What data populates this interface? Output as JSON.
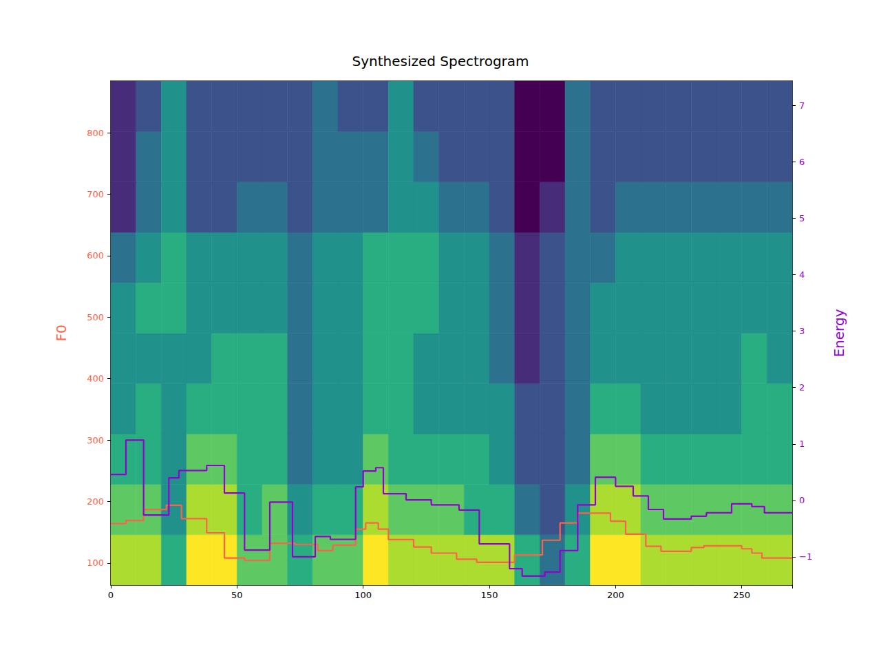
{
  "chart_data": {
    "type": "line",
    "title": "Synthesized Spectrogram",
    "xlim": [
      0,
      270
    ],
    "xticks": [
      0,
      50,
      100,
      150,
      200,
      250
    ],
    "ylabel": "F0",
    "ylim": [
      64,
      884
    ],
    "yticks": [
      100,
      200,
      300,
      400,
      500,
      600,
      700,
      800
    ],
    "y2label": "Energy",
    "y2lim": [
      -1.5,
      7.43
    ],
    "y2ticks": [
      {
        "value": -1,
        "label": "−1"
      },
      0,
      1,
      2,
      3,
      4,
      5,
      6,
      7
    ],
    "series": [
      {
        "name": "F0",
        "color": "#ff6347",
        "x": [
          0,
          6,
          13,
          22,
          28,
          38,
          45,
          53,
          63,
          73,
          82,
          88,
          97,
          101,
          106,
          110,
          120,
          127,
          137,
          145,
          160,
          171,
          178,
          185,
          198,
          204,
          212,
          218,
          230,
          235,
          250,
          254,
          258,
          270
        ],
        "values": [
          164,
          169,
          187,
          194,
          172,
          149,
          108,
          104,
          132,
          130,
          120,
          129,
          155,
          165,
          155,
          138,
          126,
          116,
          106,
          101,
          113,
          137,
          165,
          181,
          168,
          147,
          127,
          119,
          125,
          128,
          123,
          116,
          108,
          108
        ]
      },
      {
        "name": "Energy",
        "color": "#9400d3",
        "axis": "y2",
        "x": [
          0,
          6,
          13,
          23,
          27,
          38,
          45,
          53,
          63,
          72,
          81,
          87,
          97,
          100,
          105,
          108,
          117,
          127,
          138,
          146,
          158,
          163,
          172,
          178,
          185,
          192,
          200,
          207,
          213,
          219,
          230,
          236,
          246,
          254,
          259,
          270
        ],
        "values": [
          0.46,
          1.07,
          -0.26,
          0.4,
          0.53,
          0.62,
          0.13,
          -0.88,
          -0.03,
          -1.0,
          -0.64,
          -0.69,
          0.24,
          0.52,
          0.58,
          0.12,
          0.01,
          -0.08,
          -0.17,
          -0.77,
          -1.21,
          -1.34,
          -1.27,
          -0.89,
          -0.08,
          0.41,
          0.25,
          0.08,
          -0.16,
          -0.33,
          -0.28,
          -0.22,
          -0.06,
          -0.11,
          -0.22,
          -0.22
        ]
      }
    ],
    "spectrogram": {
      "x_edges": [
        0,
        10,
        20,
        30,
        40,
        50,
        60,
        70,
        80,
        90,
        100,
        110,
        120,
        130,
        140,
        150,
        160,
        170,
        180,
        190,
        200,
        210,
        220,
        230,
        240,
        250,
        260,
        270
      ],
      "y_edges": [
        64,
        146,
        228,
        310,
        392,
        474,
        556,
        638,
        720,
        802,
        884
      ],
      "values": [
        [
          8,
          8,
          6,
          9,
          9,
          7,
          7,
          6,
          7,
          7,
          9,
          8,
          8,
          8,
          8,
          8,
          6,
          4,
          6,
          9,
          9,
          8,
          8,
          8,
          8,
          8,
          8
        ],
        [
          7,
          7,
          5,
          8,
          8,
          6,
          7,
          5,
          6,
          6,
          8,
          7,
          7,
          7,
          6,
          6,
          4,
          3,
          5,
          8,
          8,
          7,
          7,
          7,
          7,
          7,
          7
        ],
        [
          6,
          6,
          5,
          7,
          7,
          6,
          6,
          4,
          5,
          5,
          7,
          6,
          6,
          6,
          6,
          5,
          3,
          3,
          4,
          7,
          7,
          6,
          6,
          6,
          6,
          6,
          6
        ],
        [
          5,
          6,
          5,
          6,
          6,
          6,
          6,
          4,
          5,
          5,
          6,
          6,
          5,
          5,
          5,
          5,
          3,
          3,
          4,
          6,
          6,
          5,
          5,
          5,
          5,
          6,
          6
        ],
        [
          5,
          5,
          5,
          5,
          6,
          6,
          6,
          4,
          5,
          5,
          6,
          6,
          5,
          5,
          5,
          4,
          2,
          3,
          4,
          5,
          5,
          5,
          5,
          5,
          5,
          6,
          5
        ],
        [
          5,
          6,
          6,
          5,
          5,
          5,
          5,
          4,
          5,
          5,
          6,
          6,
          6,
          5,
          5,
          4,
          2,
          3,
          4,
          5,
          5,
          5,
          5,
          5,
          5,
          5,
          5
        ],
        [
          4,
          5,
          6,
          5,
          5,
          5,
          5,
          4,
          5,
          5,
          6,
          6,
          6,
          5,
          5,
          4,
          2,
          3,
          4,
          4,
          5,
          5,
          5,
          5,
          5,
          5,
          5
        ],
        [
          2,
          4,
          5,
          3,
          3,
          4,
          4,
          3,
          4,
          4,
          4,
          5,
          5,
          4,
          4,
          3,
          1,
          2,
          4,
          3,
          4,
          4,
          4,
          4,
          4,
          4,
          4
        ],
        [
          2,
          4,
          5,
          3,
          3,
          3,
          3,
          3,
          4,
          4,
          4,
          5,
          4,
          3,
          3,
          3,
          1,
          1,
          4,
          3,
          3,
          3,
          3,
          3,
          3,
          3,
          3
        ],
        [
          2,
          3,
          5,
          3,
          3,
          3,
          3,
          3,
          4,
          3,
          3,
          5,
          3,
          3,
          3,
          3,
          1,
          1,
          4,
          3,
          3,
          3,
          3,
          3,
          3,
          3,
          3
        ]
      ]
    }
  }
}
